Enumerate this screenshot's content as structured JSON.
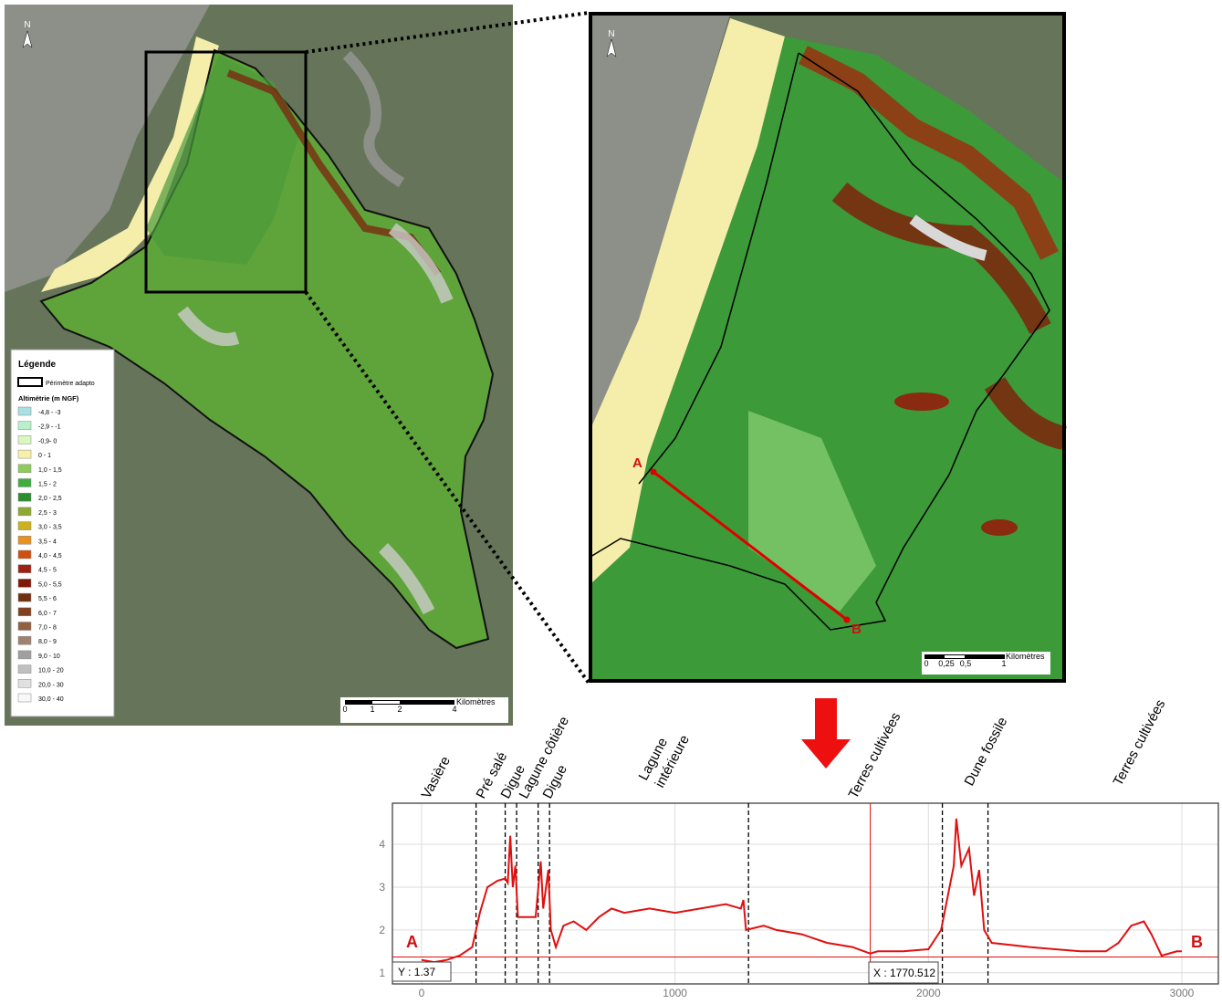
{
  "left_map": {
    "north": "N",
    "legend": {
      "title": "Légende",
      "perimeter": "Périmètre adapto",
      "classes_title": "Altimétrie (m NGF)",
      "classes": [
        {
          "label": "-4,8 - -3",
          "color": "#a8e0e4"
        },
        {
          "label": "-2,9 - -1",
          "color": "#b8f0cc"
        },
        {
          "label": "-0,9- 0",
          "color": "#d8f8c0"
        },
        {
          "label": "0 - 1",
          "color": "#f6f0a8"
        },
        {
          "label": "1,0 - 1,5",
          "color": "#8ccc5c"
        },
        {
          "label": "1,5 - 2",
          "color": "#3fae3f"
        },
        {
          "label": "2,0 - 2,5",
          "color": "#2e8c30"
        },
        {
          "label": "2,5 - 3",
          "color": "#8ea830"
        },
        {
          "label": "3,0 - 3,5",
          "color": "#ccb020"
        },
        {
          "label": "3,5 - 4",
          "color": "#e89020"
        },
        {
          "label": "4,0 - 4,5",
          "color": "#cc5010"
        },
        {
          "label": "4,5 - 5",
          "color": "#a02010"
        },
        {
          "label": "5,0 - 5,5",
          "color": "#801808"
        },
        {
          "label": "5,5 - 6",
          "color": "#6e3010"
        },
        {
          "label": "6,0 - 7",
          "color": "#804020"
        },
        {
          "label": "7,0 - 8",
          "color": "#906040"
        },
        {
          "label": "8,0 - 9",
          "color": "#a08070"
        },
        {
          "label": "9,0 - 10",
          "color": "#a0a0a0"
        },
        {
          "label": "10,0 - 20",
          "color": "#c0c0c0"
        },
        {
          "label": "20,0 - 30",
          "color": "#e0e0e0"
        },
        {
          "label": "30,0 - 40",
          "color": "#f8f8f8"
        }
      ]
    },
    "scale": {
      "labels": [
        "0",
        "1",
        "2",
        "4"
      ],
      "unit": "Kilomètres"
    }
  },
  "zoom_map": {
    "north": "N",
    "point_a": "A",
    "point_b": "B",
    "scale": {
      "labels": [
        "0",
        "0,25",
        "0,5",
        "1"
      ],
      "unit": "Kilomètres"
    }
  },
  "chart_data": {
    "type": "line",
    "color": "#e01010",
    "x": [
      0,
      50,
      100,
      150,
      200,
      230,
      260,
      300,
      330,
      340,
      350,
      360,
      370,
      380,
      450,
      470,
      480,
      500,
      510,
      530,
      560,
      600,
      650,
      700,
      750,
      800,
      900,
      1000,
      1100,
      1200,
      1260,
      1270,
      1280,
      1350,
      1400,
      1500,
      1600,
      1700,
      1770,
      1800,
      1900,
      2000,
      2050,
      2100,
      2110,
      2130,
      2160,
      2180,
      2200,
      2220,
      2250,
      2400,
      2500,
      2600,
      2700,
      2750,
      2800,
      2850,
      2880,
      2920,
      2980,
      3000
    ],
    "values": [
      1.3,
      1.25,
      1.3,
      1.4,
      1.6,
      2.4,
      3.0,
      3.15,
      3.2,
      3.1,
      4.2,
      3.0,
      3.5,
      2.3,
      2.3,
      3.6,
      2.5,
      3.4,
      2.0,
      1.6,
      2.1,
      2.2,
      2.0,
      2.3,
      2.5,
      2.4,
      2.5,
      2.4,
      2.5,
      2.6,
      2.5,
      2.7,
      2.0,
      2.1,
      2.0,
      1.9,
      1.7,
      1.6,
      1.45,
      1.5,
      1.5,
      1.55,
      2.0,
      3.5,
      4.6,
      3.5,
      3.9,
      2.8,
      3.4,
      2.0,
      1.7,
      1.6,
      1.55,
      1.5,
      1.5,
      1.7,
      2.1,
      2.2,
      1.9,
      1.4,
      1.5,
      1.5
    ],
    "xlim": [
      -115,
      3144
    ],
    "ylim": [
      0.74,
      4.96
    ],
    "xticks": [
      0,
      1000,
      2000,
      3000
    ],
    "yticks": [
      1,
      2,
      3,
      4
    ],
    "grid": true,
    "zones": {
      "boundaries": [
        215,
        330,
        375,
        460,
        505,
        1290,
        2055,
        2235
      ],
      "labels": [
        [
          "Vasière"
        ],
        [
          "Pré salé"
        ],
        [
          "Digue"
        ],
        [
          "Lagune côtière"
        ],
        [
          "Digue"
        ],
        [
          "Lagune",
          "intérieure"
        ],
        [
          "Terres cultivées"
        ],
        [
          "Dune fossile"
        ],
        [
          "Terres cultivées"
        ]
      ]
    },
    "endpoints": [
      "A",
      "B"
    ],
    "cursor": {
      "x": {
        "value": 1770.512,
        "label": "X : 1770.512"
      },
      "y": {
        "value": 1.37,
        "label": "Y : 1.37"
      }
    }
  }
}
